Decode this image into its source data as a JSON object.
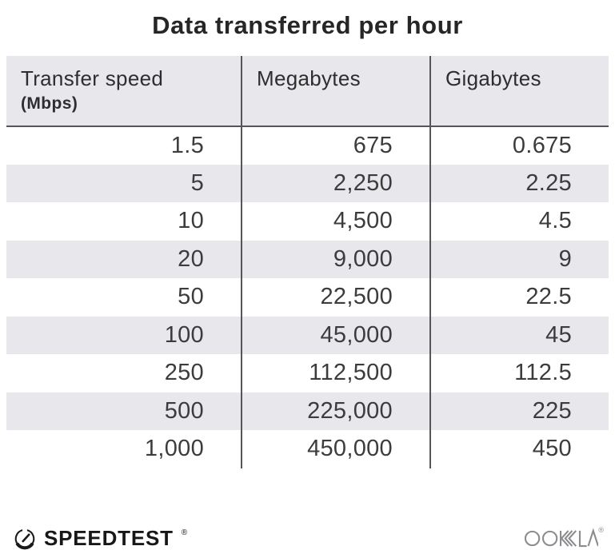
{
  "title": "Data transferred per hour",
  "table": {
    "col1_header": "Transfer speed",
    "col1_subheader": "(Mbps)",
    "col2_header": "Megabytes",
    "col3_header": "Gigabytes",
    "rows": [
      [
        "1.5",
        "675",
        "0.675"
      ],
      [
        "5",
        "2,250",
        "2.25"
      ],
      [
        "10",
        "4,500",
        "4.5"
      ],
      [
        "20",
        "9,000",
        "9"
      ],
      [
        "50",
        "22,500",
        "22.5"
      ],
      [
        "100",
        "45,000",
        "45"
      ],
      [
        "250",
        "112,500",
        "112.5"
      ],
      [
        "500",
        "225,000",
        "225"
      ],
      [
        "1,000",
        "450,000",
        "450"
      ]
    ]
  },
  "footer": {
    "speedtest_label": "SPEEDTEST",
    "speedtest_trademark": "®",
    "ookla_label": "OOKLA",
    "ookla_trademark": "®"
  },
  "colors": {
    "stripe_gray": "#e7e7ec",
    "divider_gray": "#565656",
    "title_text": "#262626",
    "data_text": "#3c3c3c",
    "logo_black": "#171717",
    "ookla_gray": "#8c8c90"
  },
  "chart_data": {
    "type": "table",
    "title": "Data transferred per hour",
    "columns": [
      "Transfer speed (Mbps)",
      "Megabytes",
      "Gigabytes"
    ],
    "rows": [
      [
        1.5,
        675,
        0.675
      ],
      [
        5,
        2250,
        2.25
      ],
      [
        10,
        4500,
        4.5
      ],
      [
        20,
        9000,
        9
      ],
      [
        50,
        22500,
        22.5
      ],
      [
        100,
        45000,
        45
      ],
      [
        250,
        112500,
        112.5
      ],
      [
        500,
        225000,
        225
      ],
      [
        1000,
        450000,
        450
      ]
    ]
  }
}
